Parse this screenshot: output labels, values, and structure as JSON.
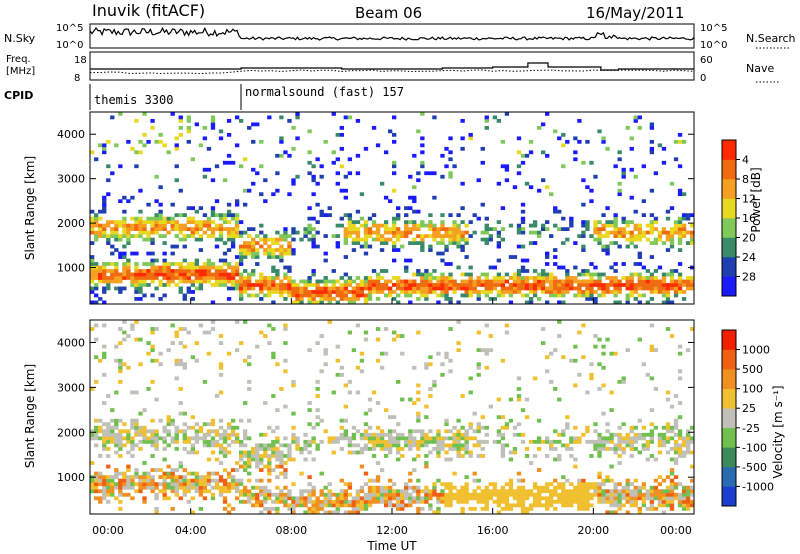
{
  "header": {
    "station": "Inuvik (fitACF)",
    "beam": "Beam 06",
    "date": "16/May/2011"
  },
  "nsky_panel": {
    "left_label": "N.Sky",
    "right_label": "N.Search",
    "left_ticks": [
      "10^5",
      "10^0"
    ],
    "right_ticks": [
      "10^5",
      "10^0"
    ]
  },
  "freq_panel": {
    "left_label_1": "Freq.",
    "left_label_2": "[MHz]",
    "right_label": "Nave",
    "left_ticks": [
      "18",
      "8"
    ],
    "right_ticks": [
      "60",
      "0"
    ]
  },
  "cpid": {
    "label": "CPID",
    "segments": [
      {
        "name": "themis 3300",
        "start_hr": 0,
        "end_hr": 6
      },
      {
        "name": "normalsound (fast) 157",
        "start_hr": 6,
        "end_hr": 24
      }
    ]
  },
  "chart_data": [
    {
      "type": "heatmap",
      "name": "power",
      "ylabel": "Slant Range [km]",
      "xlim_hours": [
        0,
        24
      ],
      "ylim": [
        180,
        4500
      ],
      "yticks": [
        1000,
        2000,
        3000,
        4000
      ],
      "colorbar": {
        "label": "Power [dB]",
        "ticks": [
          "4",
          "8",
          "12",
          "16",
          "20",
          "24",
          "28"
        ],
        "colors": [
          "#1a1aff",
          "#1f3fb0",
          "#3a8a6a",
          "#7fc85a",
          "#e8d820",
          "#f5a020",
          "#f06a10",
          "#ff2a00"
        ]
      }
    },
    {
      "type": "heatmap",
      "name": "velocity",
      "ylabel": "Slant Range [km]",
      "xlabel": "Time UT",
      "xlim_hours": [
        0,
        24
      ],
      "ylim": [
        180,
        4500
      ],
      "yticks": [
        1000,
        2000,
        3000,
        4000
      ],
      "xticks": [
        "00:00",
        "04:00",
        "08:00",
        "12:00",
        "16:00",
        "20:00",
        "00:00"
      ],
      "colorbar": {
        "label": "Velocity [m s⁻¹]",
        "ticks": [
          "1000",
          "500",
          "100",
          "25",
          "-25",
          "-100",
          "-500",
          "-1000"
        ],
        "colors": [
          "#1a3fd0",
          "#2a6ab0",
          "#3a8a5a",
          "#70c050",
          "#c0c0b8",
          "#f0c030",
          "#f09020",
          "#f06010",
          "#f02000"
        ]
      }
    }
  ]
}
